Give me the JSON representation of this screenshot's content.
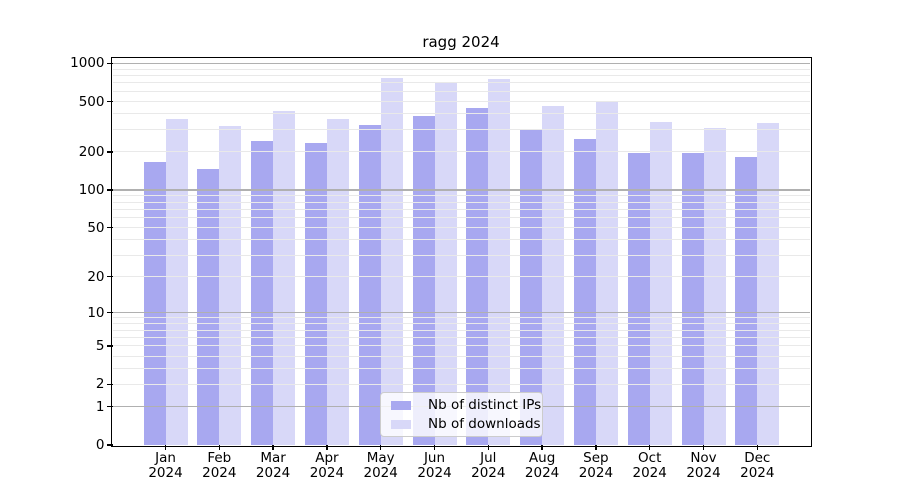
{
  "figure": {
    "background": "#ffffff"
  },
  "chart_data": {
    "type": "bar",
    "title": "ragg 2024",
    "categories": [
      "Jan",
      "Feb",
      "Mar",
      "Apr",
      "May",
      "Jun",
      "Jul",
      "Aug",
      "Sep",
      "Oct",
      "Nov",
      "Dec"
    ],
    "year_label": "2024",
    "series": [
      {
        "name": "Nb of distinct IPs",
        "color": "#a8a8f0",
        "values": [
          168,
          147,
          245,
          237,
          327,
          385,
          442,
          304,
          254,
          198,
          197,
          183
        ]
      },
      {
        "name": "Nb of downloads",
        "color": "#d8d8f8",
        "values": [
          364,
          323,
          424,
          363,
          760,
          715,
          752,
          461,
          507,
          347,
          310,
          341
        ]
      }
    ],
    "yscale": "log1p",
    "ylim": [
      0,
      1100
    ],
    "yticks": [
      0,
      1,
      2,
      5,
      10,
      20,
      50,
      100,
      200,
      500,
      1000
    ],
    "xlabel": "",
    "ylabel": "",
    "grid": {
      "visible": true,
      "major_values": [
        1,
        10,
        100,
        1000
      ],
      "minor_values": [
        2,
        3,
        4,
        5,
        6,
        7,
        8,
        9,
        20,
        30,
        40,
        50,
        60,
        70,
        80,
        90,
        200,
        300,
        400,
        500,
        600,
        700,
        800,
        900
      ],
      "major_color": "#b0b0b0",
      "minor_color": "#e9e9e9"
    },
    "legend": {
      "position": "lower center"
    }
  }
}
